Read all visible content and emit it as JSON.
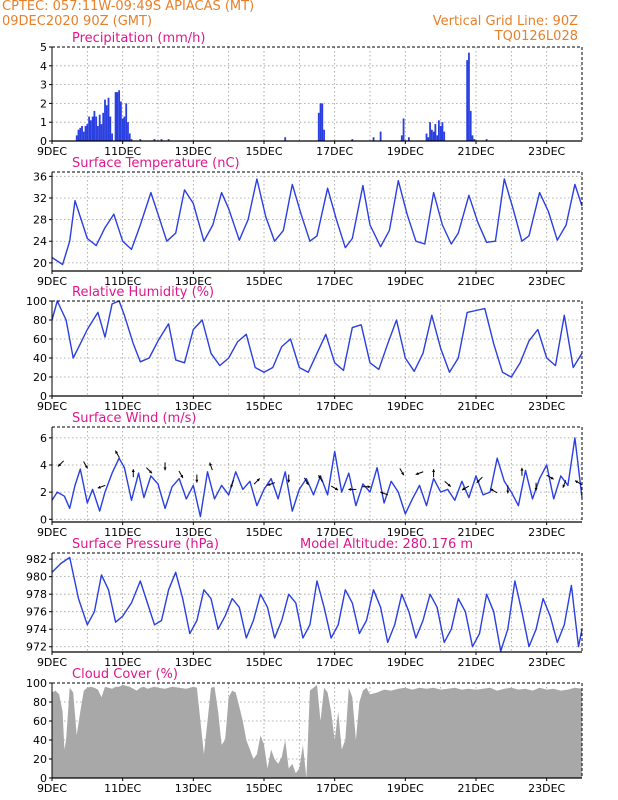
{
  "header": {
    "line1_left": "CPTEC:   057:11W-09:49S   APIACAS (MT)",
    "line2_left": "09DEC2020 90Z (GMT)",
    "line1_right": "Vertical Grid Line: 90Z",
    "line2_right": "TQ0126L028"
  },
  "colors": {
    "header": "#e8802a",
    "title": "#e0178c",
    "series": "#2a3fe0",
    "cloud": "#a8a8a8",
    "arrow": "#000000",
    "grid": "#9a9a9a"
  },
  "x_axis": {
    "days": [
      9,
      24
    ],
    "ticks": [
      9,
      11,
      13,
      15,
      17,
      19,
      21,
      23
    ],
    "tick_labels": [
      "9DEC",
      "11DEC",
      "13DEC",
      "15DEC",
      "17DEC",
      "19DEC",
      "21DEC",
      "23DEC"
    ]
  },
  "chart_data": [
    {
      "id": "precip",
      "type": "bar",
      "title": "Precipitation (mm/h)",
      "ylim": [
        0,
        5
      ],
      "yticks": [
        0,
        1,
        2,
        3,
        4,
        5
      ],
      "x": [
        9.7,
        9.75,
        9.8,
        9.85,
        9.9,
        9.95,
        10.0,
        10.05,
        10.1,
        10.15,
        10.2,
        10.25,
        10.3,
        10.35,
        10.4,
        10.45,
        10.5,
        10.55,
        10.6,
        10.65,
        10.7,
        10.8,
        10.85,
        10.9,
        10.95,
        11.0,
        11.05,
        11.1,
        11.15,
        11.2,
        11.25,
        11.5,
        11.9,
        12.1,
        12.3,
        15.6,
        16.55,
        16.6,
        16.65,
        16.7,
        17.5,
        18.1,
        18.3,
        18.9,
        18.95,
        19.1,
        19.6,
        19.65,
        19.7,
        19.75,
        19.8,
        19.85,
        19.9,
        19.95,
        20.0,
        20.05,
        20.1,
        20.75,
        20.8,
        20.85,
        20.9,
        20.95,
        21.3
      ],
      "values": [
        0.3,
        0.6,
        0.7,
        0.8,
        0.5,
        0.8,
        0.9,
        1.3,
        1.1,
        1.3,
        1.6,
        1.3,
        0.8,
        1.4,
        0.9,
        1.5,
        2.2,
        1.9,
        2.3,
        1.3,
        0.4,
        2.6,
        2.6,
        2.7,
        2.1,
        1.2,
        1.3,
        2.0,
        1.0,
        0.4,
        0.1,
        0.1,
        0.1,
        0.1,
        0.1,
        0.2,
        1.5,
        2.0,
        2.0,
        0.6,
        0.1,
        0.2,
        0.5,
        0.3,
        1.2,
        0.2,
        0.4,
        0.2,
        1.0,
        0.6,
        0.5,
        0.9,
        0.3,
        1.1,
        0.8,
        1.0,
        0.5,
        4.3,
        4.7,
        1.6,
        0.3,
        0.1,
        0.1
      ]
    },
    {
      "id": "temp",
      "type": "line",
      "title": "Surface Temperature (nC)",
      "ylim": [
        18.5,
        36.8
      ],
      "yticks": [
        20,
        24,
        28,
        32,
        36
      ],
      "x": [
        9.0,
        9.3,
        9.5,
        9.65,
        9.8,
        10.0,
        10.25,
        10.5,
        10.75,
        11.0,
        11.25,
        11.5,
        11.8,
        12.0,
        12.25,
        12.5,
        12.75,
        13.0,
        13.3,
        13.55,
        13.8,
        14.0,
        14.3,
        14.55,
        14.8,
        15.05,
        15.3,
        15.55,
        15.8,
        16.05,
        16.3,
        16.5,
        16.8,
        17.05,
        17.3,
        17.5,
        17.8,
        18.0,
        18.3,
        18.55,
        18.8,
        19.05,
        19.3,
        19.55,
        19.8,
        20.05,
        20.3,
        20.5,
        20.8,
        21.05,
        21.3,
        21.55,
        21.8,
        22.05,
        22.3,
        22.5,
        22.8,
        23.05,
        23.3,
        23.55,
        23.8,
        24.0
      ],
      "values": [
        21.0,
        19.7,
        24.0,
        31.5,
        28.5,
        24.5,
        23.2,
        26.5,
        29.0,
        24.0,
        22.5,
        27.0,
        33.0,
        29.0,
        24.0,
        25.5,
        33.5,
        31.0,
        24.0,
        27.0,
        33.0,
        30.0,
        24.2,
        28.0,
        35.5,
        28.5,
        24.0,
        26.0,
        34.5,
        29.0,
        24.0,
        25.0,
        33.8,
        28.0,
        22.8,
        24.5,
        34.3,
        27.0,
        23.0,
        26.0,
        35.2,
        29.0,
        24.0,
        23.5,
        33.0,
        27.0,
        23.5,
        25.5,
        32.5,
        27.5,
        23.8,
        24.0,
        35.5,
        30.0,
        24.0,
        25.0,
        33.0,
        29.5,
        24.2,
        27.0,
        34.5,
        30.5
      ]
    },
    {
      "id": "rh",
      "type": "line",
      "title": "Relative Humidity (%)",
      "ylim": [
        0,
        100
      ],
      "yticks": [
        0,
        20,
        40,
        60,
        80,
        100
      ],
      "x": [
        9.0,
        9.15,
        9.4,
        9.6,
        9.8,
        10.0,
        10.3,
        10.5,
        10.7,
        10.9,
        11.05,
        11.3,
        11.5,
        11.75,
        12.0,
        12.3,
        12.5,
        12.75,
        13.0,
        13.25,
        13.5,
        13.75,
        14.0,
        14.25,
        14.5,
        14.75,
        15.0,
        15.25,
        15.5,
        15.75,
        16.0,
        16.25,
        16.5,
        16.75,
        17.0,
        17.25,
        17.5,
        17.75,
        18.0,
        18.25,
        18.5,
        18.75,
        19.0,
        19.25,
        19.5,
        19.75,
        20.0,
        20.25,
        20.5,
        20.75,
        21.0,
        21.25,
        21.5,
        21.75,
        22.0,
        22.25,
        22.5,
        22.75,
        23.0,
        23.25,
        23.5,
        23.75,
        24.0
      ],
      "values": [
        80,
        100,
        80,
        40,
        55,
        70,
        88,
        62,
        97,
        100,
        85,
        55,
        36,
        40,
        58,
        76,
        38,
        35,
        70,
        80,
        45,
        32,
        40,
        57,
        65,
        30,
        25,
        30,
        52,
        60,
        30,
        25,
        45,
        65,
        35,
        27,
        72,
        75,
        35,
        28,
        55,
        80,
        40,
        26,
        45,
        85,
        50,
        25,
        40,
        88,
        90,
        92,
        55,
        25,
        20,
        35,
        58,
        70,
        40,
        32,
        85,
        30,
        45
      ]
    },
    {
      "id": "wind",
      "type": "line",
      "title": "Surface Wind (m/s)",
      "ylim": [
        -0.2,
        6.8
      ],
      "yticks": [
        0,
        2,
        4,
        6
      ],
      "x": [
        9.0,
        9.15,
        9.35,
        9.5,
        9.65,
        9.8,
        10.0,
        10.15,
        10.35,
        10.5,
        10.7,
        10.9,
        11.05,
        11.25,
        11.45,
        11.6,
        11.8,
        12.0,
        12.2,
        12.4,
        12.6,
        12.8,
        13.0,
        13.2,
        13.4,
        13.6,
        13.8,
        14.0,
        14.2,
        14.4,
        14.6,
        14.8,
        15.0,
        15.2,
        15.4,
        15.6,
        15.8,
        16.0,
        16.2,
        16.4,
        16.6,
        16.8,
        17.0,
        17.2,
        17.4,
        17.6,
        17.8,
        18.0,
        18.2,
        18.4,
        18.6,
        18.8,
        19.0,
        19.2,
        19.4,
        19.6,
        19.8,
        20.0,
        20.2,
        20.4,
        20.6,
        20.8,
        21.0,
        21.2,
        21.4,
        21.6,
        21.8,
        22.0,
        22.2,
        22.4,
        22.6,
        22.8,
        23.0,
        23.2,
        23.4,
        23.6,
        23.8,
        24.0
      ],
      "values": [
        1.4,
        2.0,
        1.7,
        0.8,
        2.5,
        3.7,
        1.2,
        2.2,
        0.6,
        2.0,
        3.4,
        4.5,
        3.8,
        1.4,
        3.4,
        1.6,
        3.2,
        2.6,
        0.8,
        2.4,
        3.0,
        1.5,
        2.5,
        0.2,
        3.5,
        1.5,
        2.5,
        1.8,
        3.5,
        2.2,
        2.8,
        1.0,
        2.2,
        3.0,
        1.5,
        3.5,
        0.6,
        2.2,
        3.0,
        1.8,
        3.2,
        1.8,
        5.0,
        2.0,
        3.4,
        1.0,
        2.6,
        2.0,
        3.8,
        1.2,
        2.8,
        2.0,
        0.4,
        1.5,
        2.5,
        1.0,
        3.0,
        2.0,
        2.2,
        1.4,
        2.8,
        1.6,
        3.2,
        1.8,
        2.0,
        4.5,
        2.8,
        2.0,
        1.0,
        3.6,
        1.5,
        3.0,
        4.0,
        1.5,
        3.2,
        2.5,
        6.0,
        1.6
      ],
      "arrow_days": [
        9.25,
        9.95,
        10.4,
        10.85,
        11.3,
        11.75,
        12.2,
        12.65,
        13.1,
        13.5,
        14.1,
        14.8,
        15.2,
        15.7,
        16.2,
        16.6,
        17.0,
        17.5,
        17.9,
        18.4,
        18.9,
        19.4,
        19.8,
        20.2,
        20.7,
        21.1,
        21.5,
        21.9,
        22.3,
        22.7,
        23.1,
        23.5,
        23.9
      ],
      "arrow_heights": [
        4.1,
        4.0,
        2.4,
        4.8,
        3.4,
        3.6,
        3.9,
        3.3,
        3.0,
        3.9,
        2.6,
        2.8,
        2.6,
        3.0,
        2.8,
        3.0,
        2.3,
        2.2,
        2.4,
        1.9,
        3.5,
        3.4,
        3.4,
        2.6,
        2.3,
        2.9,
        2.1,
        2.2,
        3.5,
        2.4,
        3.1,
        2.6,
        2.7
      ],
      "arrow_dirs": [
        225,
        300,
        200,
        120,
        90,
        315,
        270,
        300,
        270,
        110,
        250,
        45,
        200,
        270,
        300,
        120,
        330,
        180,
        0,
        160,
        300,
        200,
        90,
        320,
        210,
        225,
        150,
        270,
        90,
        270,
        330,
        250,
        150
      ]
    },
    {
      "id": "pres",
      "type": "line",
      "title": "Surface Pressure (hPa)",
      "annotation": "Model Altitude: 280.176 m",
      "ylim": [
        971.4,
        982.7
      ],
      "yticks": [
        972,
        974,
        976,
        978,
        980,
        982
      ],
      "x": [
        9.0,
        9.25,
        9.5,
        9.75,
        10.0,
        10.2,
        10.4,
        10.6,
        10.8,
        11.0,
        11.25,
        11.5,
        11.7,
        11.9,
        12.1,
        12.3,
        12.5,
        12.7,
        12.9,
        13.1,
        13.3,
        13.5,
        13.7,
        13.9,
        14.1,
        14.3,
        14.5,
        14.7,
        14.9,
        15.1,
        15.3,
        15.5,
        15.7,
        15.9,
        16.1,
        16.3,
        16.5,
        16.7,
        16.9,
        17.1,
        17.3,
        17.5,
        17.7,
        17.9,
        18.1,
        18.3,
        18.5,
        18.7,
        18.9,
        19.1,
        19.3,
        19.5,
        19.7,
        19.9,
        20.1,
        20.3,
        20.5,
        20.7,
        20.9,
        21.1,
        21.3,
        21.5,
        21.7,
        21.9,
        22.1,
        22.3,
        22.5,
        22.7,
        22.9,
        23.1,
        23.3,
        23.5,
        23.7,
        23.9,
        24.0
      ],
      "values": [
        980.5,
        981.5,
        982.2,
        977.5,
        974.5,
        976.0,
        980.2,
        978.5,
        974.8,
        975.5,
        977.0,
        979.5,
        977.0,
        974.5,
        975.0,
        978.5,
        980.5,
        977.5,
        973.5,
        975.0,
        978.5,
        977.5,
        974.0,
        975.5,
        977.5,
        976.5,
        973.0,
        975.0,
        978.0,
        976.5,
        973.0,
        975.0,
        978.0,
        977.0,
        973.0,
        974.5,
        979.5,
        976.5,
        973.0,
        974.5,
        978.5,
        977.0,
        973.5,
        975.0,
        978.5,
        976.5,
        972.5,
        974.5,
        978.0,
        976.0,
        973.0,
        975.0,
        978.0,
        976.5,
        972.5,
        974.0,
        977.5,
        976.0,
        972.0,
        973.5,
        978.0,
        976.0,
        971.5,
        974.0,
        979.5,
        976.0,
        972.0,
        974.0,
        977.5,
        975.5,
        972.5,
        974.5,
        979.0,
        972.0,
        974.0
      ]
    },
    {
      "id": "cloud",
      "type": "area",
      "title": "Cloud Cover (%)",
      "ylim": [
        0,
        100
      ],
      "yticks": [
        0,
        20,
        40,
        60,
        80,
        100
      ],
      "x": [
        9.0,
        9.1,
        9.2,
        9.3,
        9.35,
        9.4,
        9.5,
        9.6,
        9.7,
        9.8,
        9.9,
        10.0,
        10.1,
        10.2,
        10.3,
        10.4,
        10.5,
        10.6,
        10.7,
        10.8,
        10.9,
        11.0,
        11.1,
        11.2,
        11.3,
        11.4,
        11.5,
        11.6,
        11.7,
        11.8,
        11.9,
        12.0,
        12.2,
        12.4,
        12.6,
        12.8,
        13.0,
        13.1,
        13.2,
        13.3,
        13.4,
        13.5,
        13.6,
        13.7,
        13.8,
        13.9,
        14.0,
        14.1,
        14.2,
        14.3,
        14.4,
        14.5,
        14.6,
        14.7,
        14.8,
        14.9,
        15.0,
        15.1,
        15.2,
        15.3,
        15.4,
        15.5,
        15.6,
        15.7,
        15.8,
        15.9,
        16.0,
        16.1,
        16.2,
        16.3,
        16.4,
        16.5,
        16.6,
        16.7,
        16.8,
        16.9,
        17.0,
        17.1,
        17.2,
        17.3,
        17.4,
        17.5,
        17.6,
        17.7,
        17.8,
        17.9,
        18.0,
        18.2,
        18.4,
        18.6,
        18.8,
        19.0,
        19.2,
        19.4,
        19.6,
        19.8,
        20.0,
        20.2,
        20.4,
        20.6,
        20.8,
        21.0,
        21.2,
        21.4,
        21.6,
        21.8,
        22.0,
        22.2,
        22.4,
        22.6,
        22.8,
        23.0,
        23.2,
        23.4,
        23.6,
        23.8,
        24.0
      ],
      "values": [
        90,
        92,
        88,
        70,
        30,
        40,
        95,
        90,
        45,
        70,
        92,
        95,
        96,
        95,
        93,
        85,
        96,
        95,
        94,
        96,
        96,
        98,
        97,
        96,
        94,
        92,
        95,
        96,
        94,
        95,
        96,
        95,
        94,
        96,
        95,
        94,
        96,
        95,
        60,
        25,
        60,
        95,
        96,
        70,
        35,
        40,
        85,
        92,
        90,
        75,
        60,
        40,
        30,
        20,
        25,
        45,
        35,
        10,
        30,
        20,
        15,
        22,
        40,
        10,
        15,
        5,
        10,
        35,
        0,
        92,
        95,
        98,
        60,
        95,
        90,
        70,
        40,
        70,
        30,
        40,
        95,
        85,
        40,
        80,
        92,
        95,
        88,
        90,
        93,
        92,
        94,
        95,
        93,
        95,
        94,
        95,
        93,
        94,
        95,
        93,
        94,
        93,
        94,
        95,
        92,
        94,
        95,
        93,
        94,
        92,
        95,
        93,
        94,
        92,
        93,
        95,
        94
      ]
    }
  ]
}
